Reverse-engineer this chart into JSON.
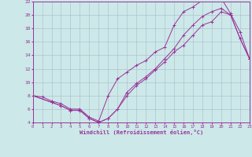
{
  "xlabel": "Windchill (Refroidissement éolien,°C)",
  "xlim": [
    0,
    23
  ],
  "ylim": [
    4,
    22
  ],
  "xticks": [
    0,
    1,
    2,
    3,
    4,
    5,
    6,
    7,
    8,
    9,
    10,
    11,
    12,
    13,
    14,
    15,
    16,
    17,
    18,
    19,
    20,
    21,
    22,
    23
  ],
  "yticks": [
    4,
    6,
    8,
    10,
    12,
    14,
    16,
    18,
    20,
    22
  ],
  "background_color": "#cce8e8",
  "grid_color": "#aabbcc",
  "line_color": "#993399",
  "line1_x": [
    0,
    1,
    2,
    3,
    4,
    5,
    6,
    7,
    8,
    9,
    10,
    11,
    12,
    13,
    14,
    15,
    16,
    17,
    18,
    19,
    20,
    21,
    22,
    23
  ],
  "line1_y": [
    8.0,
    7.8,
    7.2,
    6.8,
    6.0,
    6.0,
    4.8,
    4.2,
    8.0,
    10.5,
    11.5,
    12.5,
    13.2,
    14.5,
    15.2,
    18.5,
    20.5,
    21.2,
    22.2,
    22.5,
    22.5,
    20.2,
    17.5,
    13.5
  ],
  "line2_x": [
    0,
    2,
    3,
    4,
    5,
    6,
    7,
    8,
    9,
    10,
    11,
    12,
    13,
    14,
    15,
    16,
    17,
    18,
    19,
    20,
    21,
    22,
    23
  ],
  "line2_y": [
    8.0,
    7.0,
    6.5,
    5.8,
    5.8,
    4.6,
    4.0,
    4.6,
    6.0,
    8.5,
    9.8,
    10.8,
    12.0,
    13.5,
    15.0,
    17.0,
    18.5,
    19.8,
    20.5,
    21.0,
    20.0,
    16.5,
    13.5
  ],
  "line3_x": [
    0,
    2,
    3,
    4,
    5,
    6,
    7,
    8,
    9,
    10,
    11,
    12,
    13,
    14,
    15,
    16,
    17,
    18,
    19,
    20,
    21,
    22,
    23
  ],
  "line3_y": [
    8.0,
    7.0,
    6.5,
    5.8,
    5.8,
    4.6,
    4.0,
    4.6,
    6.0,
    8.0,
    9.5,
    10.5,
    11.8,
    13.0,
    14.5,
    15.5,
    17.0,
    18.5,
    19.0,
    20.5,
    20.0,
    16.5,
    13.5
  ]
}
